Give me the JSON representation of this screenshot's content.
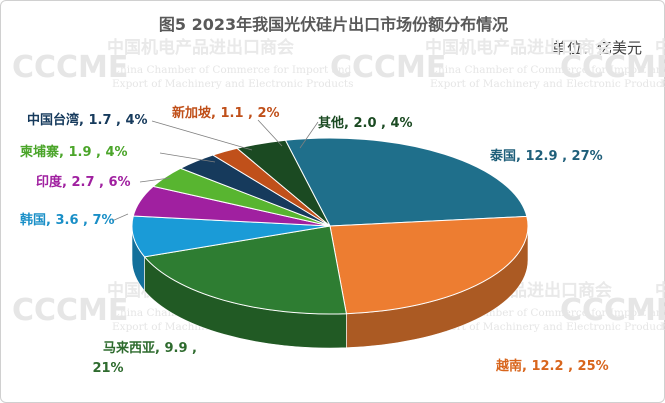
{
  "chart_data": {
    "type": "pie",
    "title": "图5  2023年我国光伏硅片出口市场份额分布情况",
    "unit": "单位：亿美元",
    "slices": [
      {
        "name": "泰国",
        "value": 12.9,
        "percent": 27,
        "label": "泰国, 12.9 , 27%",
        "color": "#1f6f8b"
      },
      {
        "name": "越南",
        "value": 12.2,
        "percent": 25,
        "label": "越南, 12.2 , 25%",
        "color": "#ed7d31"
      },
      {
        "name": "马来西亚",
        "value": 9.9,
        "percent": 21,
        "label_line1": "马来西亚, 9.9 ,",
        "label_line2": "21%",
        "color": "#2e7d32"
      },
      {
        "name": "韩国",
        "value": 3.6,
        "percent": 7,
        "label": "韩国, 3.6 , 7%",
        "color": "#1a9bd7"
      },
      {
        "name": "印度",
        "value": 2.7,
        "percent": 6,
        "label": "印度, 2.7 , 6%",
        "color": "#a020a0"
      },
      {
        "name": "柬埔寨",
        "value": 1.9,
        "percent": 4,
        "label": "柬埔寨, 1.9 , 4%",
        "color": "#58b530"
      },
      {
        "name": "中国台湾",
        "value": 1.7,
        "percent": 4,
        "label": "中国台湾, 1.7 , 4%",
        "color": "#163a5c"
      },
      {
        "name": "新加坡",
        "value": 1.1,
        "percent": 2,
        "label": "新加坡, 1.1 , 2%",
        "color": "#c0501a"
      },
      {
        "name": "其他",
        "value": 2.0,
        "percent": 4,
        "label": "其他, 2.0 , 4%",
        "color": "#1b4a22"
      }
    ]
  },
  "watermark": {
    "logo": "CCCME",
    "cn": "中国机电产品进出口商会",
    "en_line1": "China Chamber of Commerce for Import and",
    "en_line2": "Export of Machinery and Electronic Products"
  }
}
